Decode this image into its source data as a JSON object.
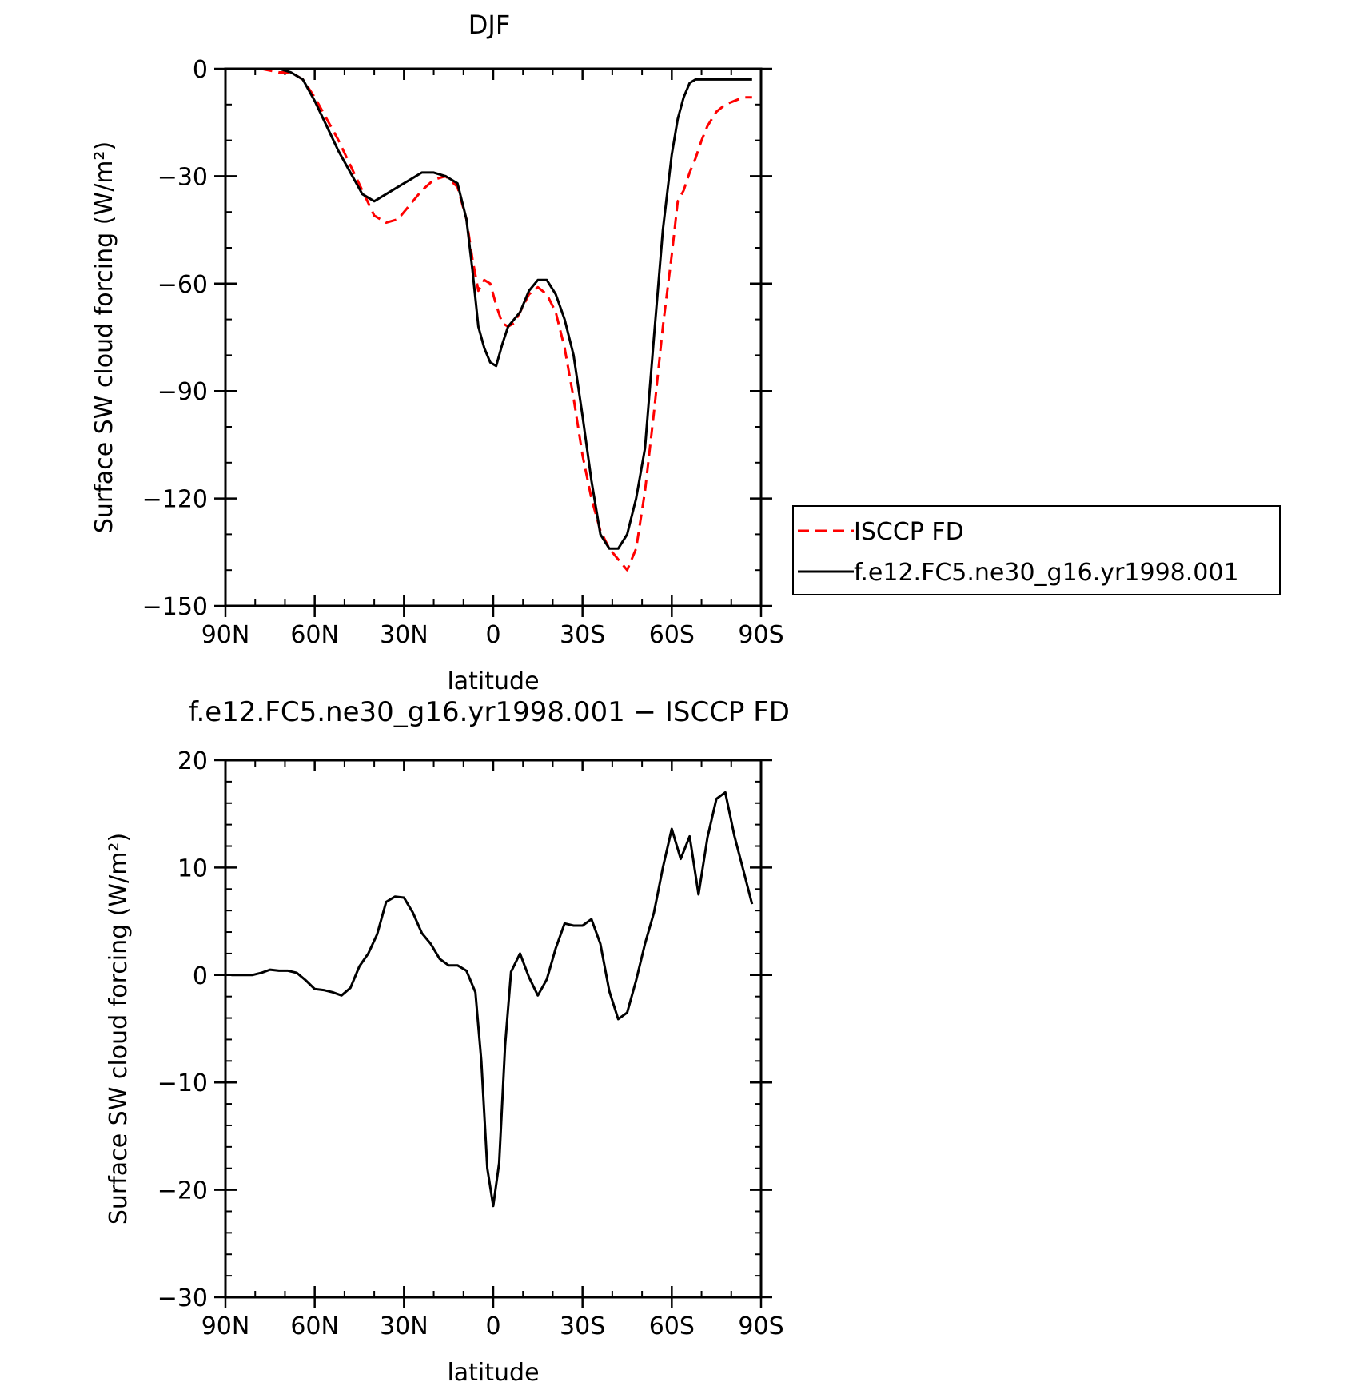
{
  "chart_data": [
    {
      "type": "line",
      "title": "DJF",
      "xlabel": "latitude",
      "ylabel": "Surface SW cloud forcing (W/m²)",
      "xlim": [
        90,
        -90
      ],
      "ylim": [
        -150,
        0
      ],
      "x_ticks": [
        90,
        60,
        30,
        0,
        -30,
        -60,
        -90
      ],
      "x_tick_labels": [
        "90N",
        "60N",
        "30N",
        "0",
        "30S",
        "60S",
        "90S"
      ],
      "y_ticks": [
        0,
        -30,
        -60,
        -90,
        -120,
        -150
      ],
      "y_tick_labels": [
        "0",
        "−30",
        "−60",
        "−90",
        "−120",
        "−150"
      ],
      "legend_position": "right",
      "series": [
        {
          "name": "ISCCP FD",
          "color": "#ff0000",
          "dash": "dashed",
          "x": [
            78,
            72,
            68,
            64,
            60,
            56,
            52,
            48,
            44,
            40,
            36,
            32,
            28,
            24,
            20,
            16,
            12,
            9,
            7,
            5,
            3,
            1,
            -1,
            -3,
            -5,
            -7,
            -9,
            -12,
            -15,
            -18,
            -21,
            -24,
            -27,
            -30,
            -33,
            -36,
            -39,
            -42,
            -45,
            -48,
            -51,
            -54,
            -57,
            -60,
            -62,
            -64,
            -66,
            -68,
            -70,
            -72,
            -75,
            -78,
            -81,
            -84,
            -87
          ],
          "y": [
            0,
            -1,
            -1,
            -3,
            -8,
            -14,
            -20,
            -27,
            -34,
            -41,
            -43,
            -42,
            -38,
            -34,
            -31,
            -30,
            -33,
            -42,
            -53,
            -62,
            -59,
            -60,
            -66,
            -71,
            -72,
            -71,
            -68,
            -63,
            -61,
            -63,
            -68,
            -78,
            -92,
            -108,
            -120,
            -129,
            -134,
            -137,
            -140,
            -134,
            -118,
            -96,
            -72,
            -52,
            -37,
            -34,
            -29,
            -25,
            -20,
            -16,
            -12,
            -10,
            -9,
            -8,
            -8
          ]
        },
        {
          "name": "f.e12.FC5.ne30_g16.yr1998.001",
          "color": "#000000",
          "dash": "solid",
          "x": [
            78,
            72,
            68,
            64,
            60,
            56,
            52,
            48,
            44,
            40,
            36,
            32,
            28,
            24,
            20,
            16,
            12,
            9,
            7,
            5,
            3,
            1,
            -1,
            -3,
            -5,
            -7,
            -9,
            -12,
            -15,
            -18,
            -21,
            -24,
            -27,
            -30,
            -33,
            -36,
            -39,
            -42,
            -45,
            -48,
            -51,
            -54,
            -57,
            -60,
            -62,
            -64,
            -66,
            -68,
            -70,
            -72,
            -75,
            -78,
            -81,
            -84,
            -87
          ],
          "y": [
            0,
            0,
            -1,
            -3,
            -9,
            -16,
            -23,
            -29,
            -35,
            -37,
            -35,
            -33,
            -31,
            -29,
            -29,
            -30,
            -32,
            -42,
            -56,
            -72,
            -78,
            -82,
            -83,
            -77,
            -72,
            -70,
            -68,
            -62,
            -59,
            -59,
            -63,
            -70,
            -80,
            -97,
            -115,
            -130,
            -134,
            -134,
            -130,
            -120,
            -106,
            -75,
            -45,
            -24,
            -14,
            -8,
            -4,
            -3,
            -3,
            -3,
            -3,
            -3,
            -3,
            -3,
            -3
          ]
        }
      ]
    },
    {
      "type": "line",
      "title": "f.e12.FC5.ne30_g16.yr1998.001 − ISCCP FD",
      "xlabel": "latitude",
      "ylabel": "Surface SW cloud forcing (W/m²)",
      "xlim": [
        90,
        -90
      ],
      "ylim": [
        -30,
        20
      ],
      "x_ticks": [
        90,
        60,
        30,
        0,
        -30,
        -60,
        -90
      ],
      "x_tick_labels": [
        "90N",
        "60N",
        "30N",
        "0",
        "30S",
        "60S",
        "90S"
      ],
      "y_ticks": [
        20,
        10,
        0,
        -10,
        -20,
        -30
      ],
      "y_tick_labels": [
        "20",
        "10",
        "0",
        "−10",
        "−20",
        "−30"
      ],
      "series": [
        {
          "color": "#000000",
          "dash": "solid",
          "x": [
            88,
            84,
            81,
            78,
            75,
            72,
            69,
            66,
            63,
            60,
            57,
            54,
            51,
            48,
            45,
            42,
            39,
            36,
            33,
            30,
            27,
            24,
            21,
            18,
            15,
            12,
            9,
            6,
            4,
            2,
            0,
            -2,
            -4,
            -6,
            -9,
            -12,
            -15,
            -18,
            -21,
            -24,
            -27,
            -30,
            -33,
            -36,
            -39,
            -42,
            -45,
            -48,
            -51,
            -54,
            -57,
            -60,
            -63,
            -66,
            -69,
            -72,
            -75,
            -78,
            -81,
            -84,
            -87
          ],
          "y": [
            0,
            0,
            0,
            0.2,
            0.5,
            0.4,
            0.4,
            0.2,
            -0.5,
            -1.3,
            -1.4,
            -1.6,
            -1.9,
            -1.2,
            0.8,
            2.0,
            3.8,
            6.8,
            7.3,
            7.2,
            5.8,
            3.9,
            2.9,
            1.5,
            0.9,
            0.9,
            0.4,
            -1.6,
            -8.0,
            -18.0,
            -21.5,
            -17.5,
            -6.5,
            0.3,
            2.0,
            -0.2,
            -1.9,
            -0.4,
            2.5,
            4.8,
            4.6,
            4.6,
            5.2,
            2.9,
            -1.5,
            -4.1,
            -3.5,
            -0.5,
            2.9,
            5.8,
            10.0,
            13.6,
            10.8,
            12.9,
            7.5,
            12.8,
            16.4,
            17.0,
            13.0,
            9.8,
            6.6
          ]
        }
      ]
    }
  ]
}
